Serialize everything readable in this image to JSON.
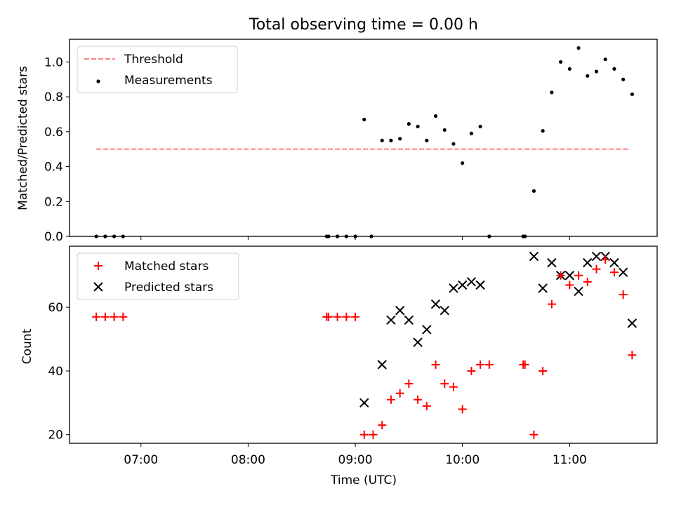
{
  "chart_data": [
    {
      "type": "scatter",
      "title": "Total observing time = 0.00 h",
      "ylabel": "Matched/Predicted stars",
      "xlabel": "",
      "xlim": [
        "06:20",
        "11:49"
      ],
      "ylim": [
        0.0,
        1.13
      ],
      "yticks": [
        0.0,
        0.2,
        0.4,
        0.6,
        0.8,
        1.0
      ],
      "ytick_labels": [
        "0.0",
        "0.2",
        "0.4",
        "0.6",
        "0.8",
        "1.0"
      ],
      "legend_position": "upper left",
      "grid": false,
      "threshold": {
        "name": "Threshold",
        "value": 0.5,
        "x_start": "06:35",
        "x_end": "11:34",
        "color": "#ff7f7f"
      },
      "series": [
        {
          "name": "Measurements",
          "marker": "dot",
          "color": "#000000",
          "points": [
            [
              "06:35",
              0.0
            ],
            [
              "06:40",
              0.0
            ],
            [
              "06:45",
              0.0
            ],
            [
              "06:50",
              0.0
            ],
            [
              "08:44",
              0.0
            ],
            [
              "08:45",
              0.0
            ],
            [
              "08:50",
              0.0
            ],
            [
              "08:55",
              0.0
            ],
            [
              "09:00",
              0.0
            ],
            [
              "09:05",
              0.67
            ],
            [
              "09:09",
              0.0
            ],
            [
              "09:15",
              0.55
            ],
            [
              "09:20",
              0.55
            ],
            [
              "09:25",
              0.56
            ],
            [
              "09:30",
              0.645
            ],
            [
              "09:35",
              0.63
            ],
            [
              "09:40",
              0.55
            ],
            [
              "09:45",
              0.69
            ],
            [
              "09:50",
              0.61
            ],
            [
              "09:55",
              0.53
            ],
            [
              "10:00",
              0.42
            ],
            [
              "10:05",
              0.59
            ],
            [
              "10:10",
              0.63
            ],
            [
              "10:15",
              0.0
            ],
            [
              "10:34",
              0.0
            ],
            [
              "10:35",
              0.0
            ],
            [
              "10:40",
              0.26
            ],
            [
              "10:45",
              0.605
            ],
            [
              "10:50",
              0.825
            ],
            [
              "10:55",
              1.0
            ],
            [
              "11:00",
              0.96
            ],
            [
              "11:05",
              1.08
            ],
            [
              "11:10",
              0.92
            ],
            [
              "11:15",
              0.945
            ],
            [
              "11:20",
              1.015
            ],
            [
              "11:25",
              0.96
            ],
            [
              "11:30",
              0.9
            ],
            [
              "11:35",
              0.815
            ]
          ]
        }
      ]
    },
    {
      "type": "scatter",
      "title": "",
      "ylabel": "Count",
      "xlabel": "Time (UTC)",
      "xlim": [
        "06:20",
        "11:49"
      ],
      "ylim": [
        17.3,
        79.2
      ],
      "yticks": [
        20,
        40,
        60
      ],
      "ytick_labels": [
        "20",
        "40",
        "60"
      ],
      "xticks": [
        "07:00",
        "08:00",
        "09:00",
        "10:00",
        "11:00"
      ],
      "xtick_labels": [
        "07:00",
        "08:00",
        "09:00",
        "10:00",
        "11:00"
      ],
      "legend_position": "upper left",
      "grid": false,
      "series": [
        {
          "name": "Matched stars",
          "marker": "plus",
          "color": "#ff0000",
          "points": [
            [
              "06:35",
              57
            ],
            [
              "06:40",
              57
            ],
            [
              "06:45",
              57
            ],
            [
              "06:50",
              57
            ],
            [
              "08:44",
              57
            ],
            [
              "08:45",
              57
            ],
            [
              "08:50",
              57
            ],
            [
              "08:55",
              57
            ],
            [
              "09:00",
              57
            ],
            [
              "09:05",
              20
            ],
            [
              "09:10",
              20
            ],
            [
              "09:15",
              23
            ],
            [
              "09:20",
              31
            ],
            [
              "09:25",
              33
            ],
            [
              "09:30",
              36
            ],
            [
              "09:35",
              31
            ],
            [
              "09:40",
              29
            ],
            [
              "09:45",
              42
            ],
            [
              "09:50",
              36
            ],
            [
              "09:55",
              35
            ],
            [
              "10:00",
              28
            ],
            [
              "10:05",
              40
            ],
            [
              "10:10",
              42
            ],
            [
              "10:15",
              42
            ],
            [
              "10:34",
              42
            ],
            [
              "10:35",
              42
            ],
            [
              "10:40",
              20
            ],
            [
              "10:45",
              40
            ],
            [
              "10:50",
              61
            ],
            [
              "10:55",
              70
            ],
            [
              "11:00",
              67
            ],
            [
              "11:05",
              70
            ],
            [
              "11:10",
              68
            ],
            [
              "11:15",
              72
            ],
            [
              "11:20",
              75
            ],
            [
              "11:25",
              71
            ],
            [
              "11:30",
              64
            ],
            [
              "11:35",
              45
            ]
          ]
        },
        {
          "name": "Predicted stars",
          "marker": "x",
          "color": "#000000",
          "points": [
            [
              "09:05",
              30
            ],
            [
              "09:15",
              42
            ],
            [
              "09:20",
              56
            ],
            [
              "09:25",
              59
            ],
            [
              "09:30",
              56
            ],
            [
              "09:35",
              49
            ],
            [
              "09:40",
              53
            ],
            [
              "09:45",
              61
            ],
            [
              "09:50",
              59
            ],
            [
              "09:55",
              66
            ],
            [
              "10:00",
              67
            ],
            [
              "10:05",
              68
            ],
            [
              "10:10",
              67
            ],
            [
              "10:40",
              76
            ],
            [
              "10:45",
              66
            ],
            [
              "10:50",
              74
            ],
            [
              "10:55",
              70
            ],
            [
              "11:00",
              70
            ],
            [
              "11:05",
              65
            ],
            [
              "11:10",
              74
            ],
            [
              "11:15",
              76
            ],
            [
              "11:20",
              76
            ],
            [
              "11:25",
              74
            ],
            [
              "11:30",
              71
            ],
            [
              "11:35",
              55
            ]
          ]
        }
      ]
    }
  ]
}
